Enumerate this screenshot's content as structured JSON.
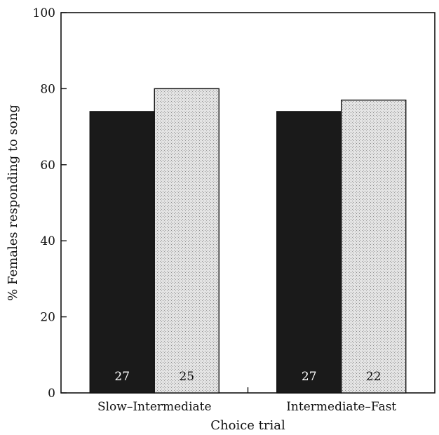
{
  "chart_data": {
    "type": "bar",
    "xlabel": "Choice trial",
    "ylabel": "% Females responding to song",
    "ylim": [
      0,
      100
    ],
    "yticks": [
      0,
      20,
      40,
      60,
      80,
      100
    ],
    "categories": [
      "Slow–Intermediate",
      "Intermediate–Fast"
    ],
    "series": [
      {
        "values": [
          74,
          74
        ],
        "sample_sizes": [
          "27",
          "27"
        ],
        "fill": "#1a1a1a"
      },
      {
        "values": [
          80,
          77
        ],
        "sample_sizes": [
          "25",
          "22"
        ],
        "fill": "#d9d9d9"
      }
    ],
    "grid": false,
    "legend": "none"
  }
}
